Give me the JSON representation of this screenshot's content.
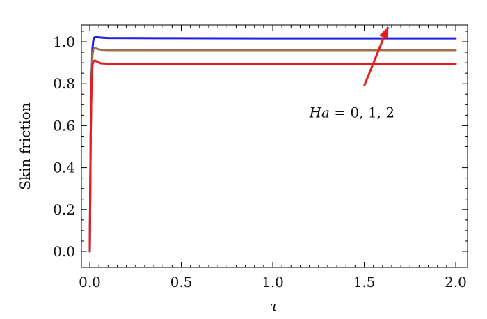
{
  "chart_data": {
    "type": "line",
    "title": "",
    "xlabel": "τ",
    "ylabel": "Skin friction",
    "xlim": [
      0.0,
      2.0
    ],
    "ylim": [
      -0.02,
      1.08
    ],
    "xticks": [
      0.0,
      0.5,
      1.0,
      1.5,
      2.0
    ],
    "xtick_labels": [
      "0.0",
      "0.5",
      "1.0",
      "1.5",
      "2.0"
    ],
    "yticks": [
      0.0,
      0.2,
      0.4,
      0.6,
      0.8,
      1.0
    ],
    "ytick_labels": [
      "0.0",
      "0.2",
      "0.4",
      "0.6",
      "0.8",
      "1.0"
    ],
    "grid": false,
    "series": [
      {
        "color": "#1f1fe0",
        "x": [
          0.0,
          0.005,
          0.01,
          0.015,
          0.02,
          0.025,
          0.03,
          0.04,
          0.06,
          0.1,
          0.4,
          1.0,
          2.0
        ],
        "y": [
          0.0,
          0.55,
          0.85,
          0.97,
          1.01,
          1.02,
          1.022,
          1.022,
          1.02,
          1.018,
          1.017,
          1.016,
          1.016
        ]
      },
      {
        "color": "#a0704a",
        "x": [
          0.0,
          0.005,
          0.01,
          0.015,
          0.02,
          0.025,
          0.03,
          0.04,
          0.06,
          0.1,
          0.4,
          1.0,
          2.0
        ],
        "y": [
          0.0,
          0.55,
          0.84,
          0.94,
          0.965,
          0.97,
          0.97,
          0.966,
          0.962,
          0.96,
          0.96,
          0.96,
          0.96
        ]
      },
      {
        "color": "#e81c1c",
        "x": [
          0.0,
          0.005,
          0.01,
          0.015,
          0.02,
          0.025,
          0.03,
          0.04,
          0.06,
          0.1,
          0.4,
          1.0,
          2.0
        ],
        "y": [
          0.0,
          0.55,
          0.82,
          0.89,
          0.905,
          0.91,
          0.91,
          0.905,
          0.897,
          0.895,
          0.895,
          0.895,
          0.895
        ]
      }
    ],
    "annotation": {
      "prefix": "Ha",
      "text": " = 0, 1, 2",
      "x": 1.2,
      "y": 0.64,
      "arrow": {
        "from": [
          1.5,
          0.79
        ],
        "to": [
          1.63,
          1.07
        ],
        "color": "#e81c1c"
      }
    }
  }
}
